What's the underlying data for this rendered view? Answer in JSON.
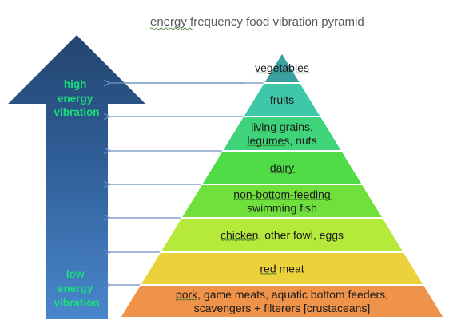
{
  "title": {
    "prefix": "energy",
    "rest": " frequency food vibration pyramid"
  },
  "big_arrow": {
    "top_label": [
      "high",
      "energy",
      "vibration"
    ],
    "bottom_label": [
      "low",
      "energy",
      "vibration"
    ]
  },
  "levels": [
    {
      "lines": [
        "vegetables"
      ],
      "color": "#3aa0a0"
    },
    {
      "lines": [
        "fruits"
      ],
      "color": "#3ec7a8"
    },
    {
      "lines": [
        "living grains,",
        "legumes, nuts"
      ],
      "color": "#3fd47a"
    },
    {
      "lines": [
        "dairy"
      ],
      "color": "#4fdc47"
    },
    {
      "lines": [
        "non-bottom-feeding",
        "swimming fish"
      ],
      "color": "#6fe03c"
    },
    {
      "lines": [
        "chicken, other fowl, eggs"
      ],
      "color": "#b6ea3a"
    },
    {
      "lines": [
        "red meat"
      ],
      "color": "#ecd23a"
    },
    {
      "lines": [
        "pork, game meats, aquatic bottom feeders,",
        "scavengers + filterers [crustaceans]"
      ],
      "color": "#f0934a"
    }
  ]
}
